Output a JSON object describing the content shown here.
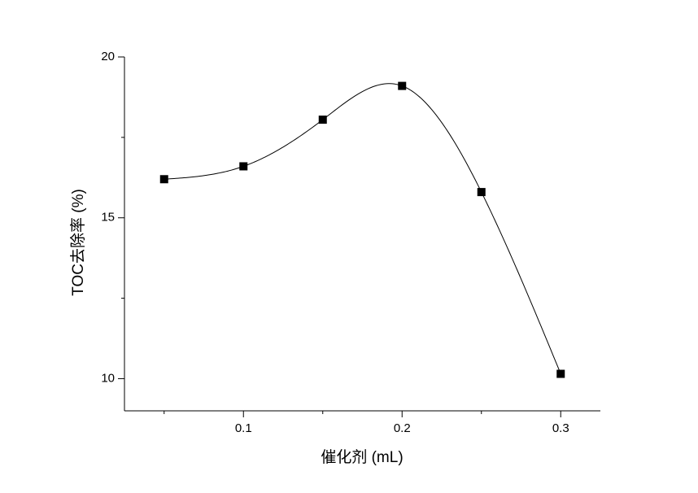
{
  "chart_data": {
    "type": "line",
    "smooth": true,
    "marker": "square",
    "xlabel": "催化剂 (mL)",
    "ylabel": "TOC去除率 (%)",
    "x": [
      0.05,
      0.1,
      0.15,
      0.2,
      0.25,
      0.3
    ],
    "series": [
      {
        "color": "#000000",
        "values": [
          16.2,
          16.6,
          18.05,
          19.1,
          15.8,
          10.15
        ]
      }
    ],
    "xlim": [
      0.025,
      0.325
    ],
    "ylim": [
      9,
      20
    ],
    "xticks": [
      0.1,
      0.2,
      0.3
    ],
    "yticks": [
      10,
      15,
      20
    ],
    "xminor": [
      0.05,
      0.15,
      0.25
    ],
    "yminor": [
      12.5,
      17.5
    ],
    "grid": false
  }
}
